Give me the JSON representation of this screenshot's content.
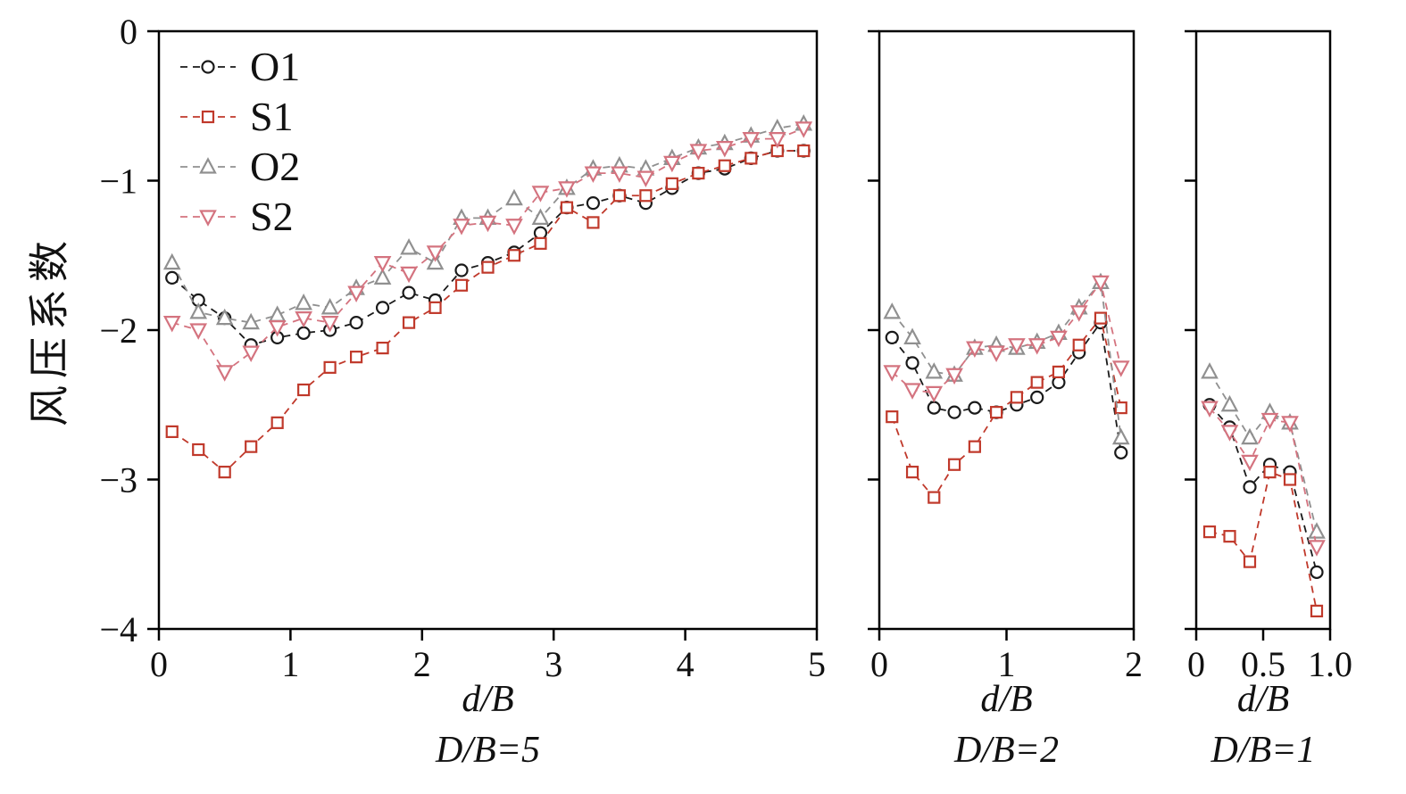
{
  "chart_data": {
    "type": "line",
    "title": "",
    "ylabel": "风压系数",
    "grid": false,
    "legend_position": "top-left",
    "ylim": [
      -4,
      0
    ],
    "yticks": [
      0,
      -1,
      -2,
      -3,
      -4
    ],
    "ytick_labels": [
      "0",
      "−1",
      "−2",
      "−3",
      "−4"
    ],
    "series_meta": [
      {
        "name": "O1",
        "color": "#1a1a1a",
        "marker": "circle"
      },
      {
        "name": "S1",
        "color": "#c0392b",
        "marker": "square"
      },
      {
        "name": "O2",
        "color": "#909090",
        "marker": "triangle-up"
      },
      {
        "name": "S2",
        "color": "#d4737f",
        "marker": "triangle-down"
      }
    ],
    "panels": [
      {
        "xlabel": "d/B",
        "sublabel": "D/B=5",
        "xlim": [
          0,
          5
        ],
        "xticks": [
          0,
          1,
          2,
          3,
          4,
          5
        ],
        "xtick_labels": [
          "0",
          "1",
          "2",
          "3",
          "4",
          "5"
        ],
        "show_ylabels": true,
        "x": [
          0.1,
          0.3,
          0.5,
          0.7,
          0.9,
          1.1,
          1.3,
          1.5,
          1.7,
          1.9,
          2.1,
          2.3,
          2.5,
          2.7,
          2.9,
          3.1,
          3.3,
          3.5,
          3.7,
          3.9,
          4.1,
          4.3,
          4.5,
          4.7,
          4.9
        ],
        "series": [
          {
            "name": "O1",
            "values": [
              -1.65,
              -1.8,
              -1.92,
              -2.1,
              -2.05,
              -2.02,
              -2.0,
              -1.95,
              -1.85,
              -1.75,
              -1.8,
              -1.6,
              -1.55,
              -1.48,
              -1.35,
              -1.18,
              -1.15,
              -1.1,
              -1.15,
              -1.05,
              -0.95,
              -0.92,
              -0.85,
              -0.8,
              -0.8
            ]
          },
          {
            "name": "S1",
            "values": [
              -2.68,
              -2.8,
              -2.95,
              -2.78,
              -2.62,
              -2.4,
              -2.25,
              -2.18,
              -2.12,
              -1.95,
              -1.85,
              -1.7,
              -1.58,
              -1.5,
              -1.42,
              -1.18,
              -1.28,
              -1.1,
              -1.1,
              -1.02,
              -0.95,
              -0.9,
              -0.85,
              -0.8,
              -0.8
            ]
          },
          {
            "name": "O2",
            "values": [
              -1.55,
              -1.88,
              -1.92,
              -1.95,
              -1.9,
              -1.82,
              -1.85,
              -1.72,
              -1.65,
              -1.45,
              -1.55,
              -1.25,
              -1.25,
              -1.12,
              -1.25,
              -1.05,
              -0.92,
              -0.9,
              -0.92,
              -0.85,
              -0.78,
              -0.75,
              -0.7,
              -0.65,
              -0.62
            ]
          },
          {
            "name": "S2",
            "values": [
              -1.95,
              -2.0,
              -2.28,
              -2.15,
              -1.98,
              -1.92,
              -1.95,
              -1.75,
              -1.55,
              -1.62,
              -1.48,
              -1.3,
              -1.28,
              -1.3,
              -1.08,
              -1.05,
              -0.95,
              -0.95,
              -0.98,
              -0.88,
              -0.8,
              -0.78,
              -0.72,
              -0.72,
              -0.65
            ]
          }
        ]
      },
      {
        "xlabel": "d/B",
        "sublabel": "D/B=2",
        "xlim": [
          0,
          2
        ],
        "xticks": [
          0,
          1,
          2
        ],
        "xtick_labels": [
          "0",
          "1",
          "2"
        ],
        "show_ylabels": false,
        "x": [
          0.1,
          0.26,
          0.43,
          0.59,
          0.75,
          0.92,
          1.08,
          1.24,
          1.41,
          1.57,
          1.74,
          1.9
        ],
        "series": [
          {
            "name": "O1",
            "values": [
              -2.05,
              -2.22,
              -2.52,
              -2.55,
              -2.52,
              -2.55,
              -2.5,
              -2.45,
              -2.35,
              -2.15,
              -1.95,
              -2.82
            ]
          },
          {
            "name": "S1",
            "values": [
              -2.58,
              -2.95,
              -3.12,
              -2.9,
              -2.78,
              -2.55,
              -2.45,
              -2.35,
              -2.28,
              -2.1,
              -1.92,
              -2.52
            ]
          },
          {
            "name": "O2",
            "values": [
              -1.88,
              -2.05,
              -2.28,
              -2.3,
              -2.12,
              -2.1,
              -2.12,
              -2.08,
              -2.02,
              -1.85,
              -1.68,
              -2.72
            ]
          },
          {
            "name": "S2",
            "values": [
              -2.28,
              -2.4,
              -2.42,
              -2.3,
              -2.12,
              -2.15,
              -2.1,
              -2.1,
              -2.05,
              -1.88,
              -1.68,
              -2.25
            ]
          }
        ]
      },
      {
        "xlabel": "d/B",
        "sublabel": "D/B=1",
        "xlim": [
          0,
          1
        ],
        "xticks": [
          0,
          0.5,
          1.0
        ],
        "xtick_labels": [
          "0",
          "0.5",
          "1.0"
        ],
        "show_ylabels": false,
        "x": [
          0.1,
          0.25,
          0.4,
          0.55,
          0.7,
          0.9
        ],
        "series": [
          {
            "name": "O1",
            "values": [
              -2.5,
              -2.65,
              -3.05,
              -2.9,
              -2.95,
              -3.62
            ]
          },
          {
            "name": "S1",
            "values": [
              -3.35,
              -3.38,
              -3.55,
              -2.95,
              -3.0,
              -3.88
            ]
          },
          {
            "name": "O2",
            "values": [
              -2.28,
              -2.5,
              -2.72,
              -2.55,
              -2.62,
              -3.35
            ]
          },
          {
            "name": "S2",
            "values": [
              -2.52,
              -2.68,
              -2.88,
              -2.6,
              -2.62,
              -3.45
            ]
          }
        ]
      }
    ]
  }
}
